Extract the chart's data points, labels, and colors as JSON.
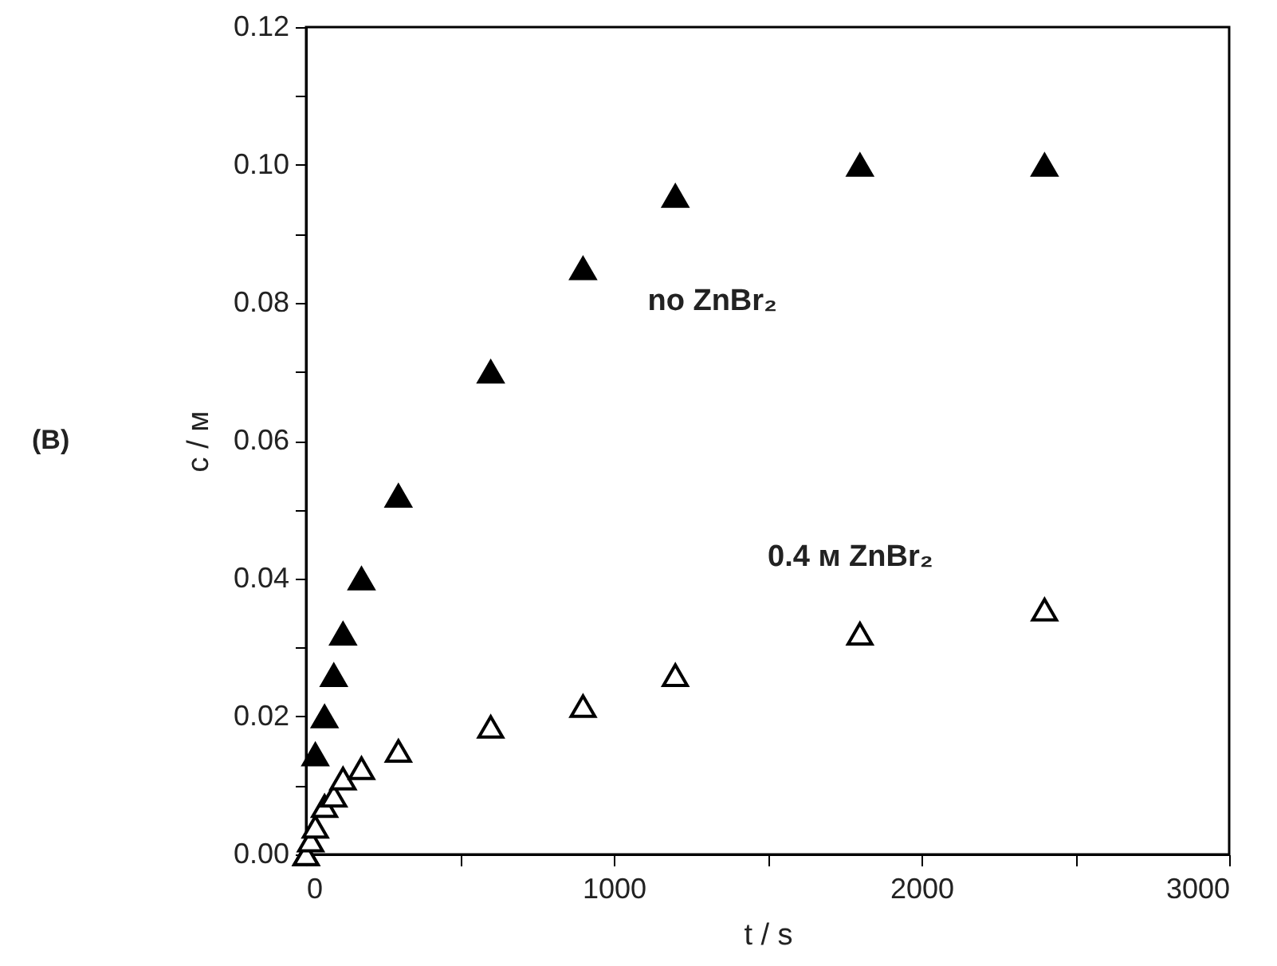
{
  "chart_data": {
    "type": "scatter",
    "xlabel": "t / s",
    "ylabel": "c / м",
    "annotations": [
      "(B)"
    ],
    "xlim": [
      0,
      3000
    ],
    "ylim": [
      0,
      0.12
    ],
    "xticks": [
      0,
      {
        "value": 500,
        "label": null
      },
      1000,
      {
        "value": 1500,
        "label": null
      },
      2000,
      {
        "value": 2500,
        "label": null
      },
      3000
    ],
    "yticks": [
      {
        "value": 0,
        "label": "0.00"
      },
      {
        "value": 0.01,
        "label": null
      },
      {
        "value": 0.02,
        "label": "0.02"
      },
      {
        "value": 0.03,
        "label": null
      },
      {
        "value": 0.04,
        "label": "0.04"
      },
      {
        "value": 0.05,
        "label": null
      },
      {
        "value": 0.06,
        "label": "0.06"
      },
      {
        "value": 0.07,
        "label": null
      },
      {
        "value": 0.08,
        "label": "0.08"
      },
      {
        "value": 0.09,
        "label": null
      },
      {
        "value": 0.1,
        "label": "0.10"
      },
      {
        "value": 0.11,
        "label": null
      },
      {
        "value": 0.12,
        "label": "0.12"
      }
    ],
    "grid": false,
    "legend": false,
    "marker": "triangle",
    "series": [
      {
        "name": "no ZnBr₂",
        "color": "#000000",
        "x": [
          0,
          30,
          60,
          90,
          120,
          180,
          300,
          600,
          900,
          1200,
          1800,
          2400
        ],
        "values": [
          0,
          0.0145,
          0.02,
          0.026,
          0.032,
          0.04,
          0.052,
          0.07,
          0.085,
          0.0955,
          0.1,
          0.1
        ]
      },
      {
        "name": "0.4 м ZnBr₂",
        "color": "#ffffff",
        "x": [
          0,
          15,
          30,
          60,
          90,
          120,
          180,
          300,
          600,
          900,
          1200,
          1800,
          2400
        ],
        "values": [
          0,
          0.002,
          0.004,
          0.007,
          0.0085,
          0.011,
          0.0125,
          0.015,
          0.0185,
          0.0215,
          0.026,
          0.032,
          0.0355
        ]
      }
    ]
  }
}
